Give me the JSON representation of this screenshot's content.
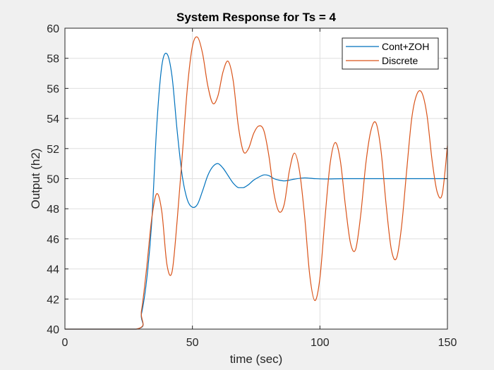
{
  "chart_data": {
    "type": "line",
    "title": "System Response for Ts = 4",
    "xlabel": "time (sec)",
    "ylabel": "Output (h2)",
    "xlim": [
      0,
      150
    ],
    "ylim": [
      40,
      60
    ],
    "xticks": [
      0,
      50,
      100,
      150
    ],
    "yticks": [
      40,
      42,
      44,
      46,
      48,
      50,
      52,
      54,
      56,
      58,
      60
    ],
    "grid": true,
    "legend_position": "top-right",
    "series": [
      {
        "name": "Cont+ZOH",
        "color": "#0072BD",
        "x": [
          0,
          28,
          30,
          32,
          34,
          36,
          38,
          40,
          42,
          44,
          46,
          48,
          50,
          52,
          54,
          56,
          58,
          60,
          62,
          64,
          66,
          68,
          70,
          72,
          74,
          76,
          78,
          80,
          82,
          84,
          86,
          88,
          90,
          94,
          98,
          102,
          110,
          120,
          130,
          150
        ],
        "y": [
          40,
          40,
          41.0,
          43.2,
          47.0,
          53.5,
          57.5,
          58.3,
          56.8,
          53.2,
          50.2,
          48.6,
          48.1,
          48.3,
          49.2,
          50.2,
          50.8,
          51.0,
          50.7,
          50.2,
          49.7,
          49.4,
          49.4,
          49.6,
          49.9,
          50.1,
          50.25,
          50.2,
          50.0,
          49.9,
          49.85,
          49.9,
          49.97,
          50.05,
          50.0,
          49.98,
          50.0,
          50.0,
          50.0,
          50.0
        ]
      },
      {
        "name": "Discrete",
        "color": "#D95319",
        "x": [
          0,
          28,
          30,
          32,
          34,
          36,
          38,
          40,
          42,
          44,
          46,
          48,
          50,
          52,
          54,
          56,
          58,
          60,
          62,
          64,
          66,
          68,
          70,
          72,
          74,
          76,
          78,
          80,
          82,
          84,
          86,
          88,
          90,
          92,
          94,
          96,
          98,
          100,
          102,
          104,
          106,
          108,
          110,
          112,
          114,
          116,
          118,
          120,
          122,
          124,
          126,
          128,
          130,
          132,
          134,
          136,
          138,
          140,
          142,
          144,
          146,
          148,
          150
        ],
        "y": [
          40,
          40,
          41.2,
          44.0,
          47.3,
          49.0,
          47.8,
          44.3,
          43.8,
          47.2,
          51.5,
          56.0,
          58.8,
          59.4,
          58.3,
          56.2,
          55.0,
          55.5,
          57.1,
          57.8,
          56.5,
          53.5,
          51.8,
          52.0,
          53.0,
          53.5,
          53.2,
          51.5,
          49.0,
          47.8,
          48.3,
          50.5,
          51.7,
          50.5,
          47.5,
          43.6,
          41.9,
          43.4,
          47.4,
          51.0,
          52.4,
          51.2,
          48.2,
          45.7,
          45.3,
          47.6,
          51.0,
          53.2,
          53.7,
          51.8,
          48.2,
          45.3,
          44.7,
          46.8,
          50.5,
          54.0,
          55.6,
          55.7,
          54.2,
          51.2,
          49.1,
          49.0,
          52.2
        ]
      }
    ]
  }
}
